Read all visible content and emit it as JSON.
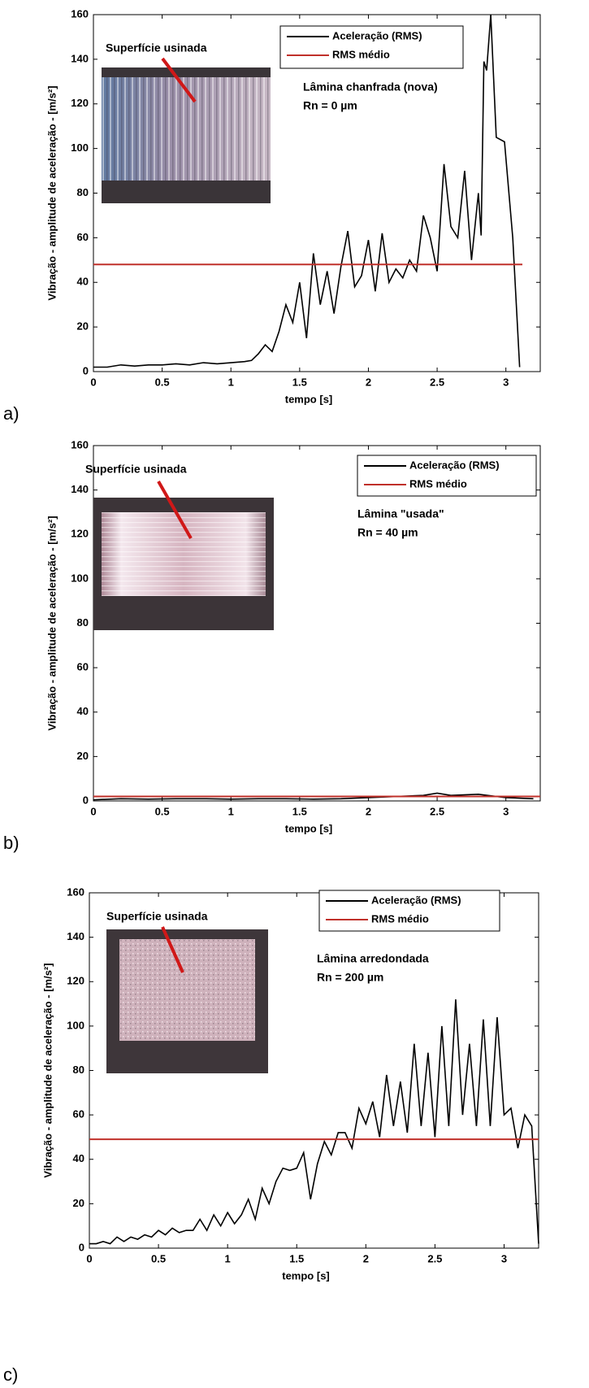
{
  "chart_data": [
    {
      "type": "line",
      "panel_label": "a)",
      "x_label": "tempo [s]",
      "y_label": "Vibração - amplitude de aceleração - [m/s²]",
      "inset_label": "Superfície usinada",
      "annotations": [
        "Lâmina chanfrada (nova)",
        "Rn = 0 µm"
      ],
      "xlim": [
        0,
        3.25
      ],
      "ylim": [
        0,
        160
      ],
      "xticks": [
        0,
        0.5,
        1,
        1.5,
        2,
        2.5,
        3
      ],
      "yticks": [
        0,
        20,
        40,
        60,
        80,
        100,
        120,
        140,
        160
      ],
      "series": [
        {
          "name": "Aceleração (RMS)",
          "color": "#000000",
          "x": [
            0,
            0.1,
            0.2,
            0.3,
            0.4,
            0.5,
            0.6,
            0.7,
            0.8,
            0.9,
            1.0,
            1.1,
            1.15,
            1.2,
            1.25,
            1.3,
            1.35,
            1.4,
            1.45,
            1.5,
            1.55,
            1.6,
            1.65,
            1.7,
            1.75,
            1.8,
            1.85,
            1.9,
            1.95,
            2.0,
            2.05,
            2.1,
            2.15,
            2.2,
            2.25,
            2.3,
            2.35,
            2.4,
            2.45,
            2.5,
            2.55,
            2.6,
            2.65,
            2.7,
            2.75,
            2.8,
            2.82,
            2.84,
            2.86,
            2.89,
            2.93,
            2.99,
            3.05,
            3.1
          ],
          "values": [
            2,
            2,
            3,
            2.5,
            3,
            3,
            3.5,
            3,
            4,
            3.5,
            4,
            4.5,
            5,
            8,
            12,
            9,
            18,
            30,
            22,
            40,
            15,
            53,
            30,
            45,
            26,
            47,
            63,
            38,
            43,
            59,
            36,
            62,
            40,
            46,
            42,
            50,
            45,
            70,
            60,
            45,
            93,
            65,
            60,
            90,
            50,
            80,
            61,
            139,
            135,
            160,
            105,
            103,
            60,
            2
          ]
        },
        {
          "name": "RMS médio",
          "color": "#c0302a",
          "x": [
            0,
            3.12
          ],
          "values": [
            48,
            48
          ]
        }
      ]
    },
    {
      "type": "line",
      "panel_label": "b)",
      "x_label": "tempo [s]",
      "y_label": "Vibração - amplitude de aceleração - [m/s²]",
      "inset_label": "Superfície usinada",
      "annotations": [
        "Lâmina \"usada\"",
        "Rn = 40 µm"
      ],
      "xlim": [
        0,
        3.25
      ],
      "ylim": [
        0,
        160
      ],
      "xticks": [
        0,
        0.5,
        1,
        1.5,
        2,
        2.5,
        3
      ],
      "yticks": [
        0,
        20,
        40,
        60,
        80,
        100,
        120,
        140,
        160
      ],
      "series": [
        {
          "name": "Aceleração (RMS)",
          "color": "#000000",
          "x": [
            0,
            0.2,
            0.4,
            0.6,
            0.8,
            1.0,
            1.2,
            1.4,
            1.6,
            1.8,
            2.0,
            2.2,
            2.4,
            2.5,
            2.6,
            2.8,
            3.0,
            3.2
          ],
          "values": [
            0.5,
            1,
            0.8,
            1,
            1,
            0.8,
            1,
            1,
            0.8,
            1,
            1.5,
            2,
            2.5,
            3.5,
            2.5,
            3,
            1.5,
            1
          ]
        },
        {
          "name": "RMS médio",
          "color": "#c0302a",
          "x": [
            0,
            3.25
          ],
          "values": [
            2,
            2
          ]
        }
      ]
    },
    {
      "type": "line",
      "panel_label": "c)",
      "x_label": "tempo [s]",
      "y_label": "Vibração - amplitude de aceleração - [m/s²]",
      "inset_label": "Superfície usinada",
      "annotations": [
        "Lâmina arredondada",
        "Rn = 200 µm"
      ],
      "xlim": [
        0,
        3.25
      ],
      "ylim": [
        0,
        160
      ],
      "xticks": [
        0,
        0.5,
        1,
        1.5,
        2,
        2.5,
        3
      ],
      "yticks": [
        0,
        20,
        40,
        60,
        80,
        100,
        120,
        140,
        160
      ],
      "series": [
        {
          "name": "Aceleração (RMS)",
          "color": "#000000",
          "x": [
            0,
            0.05,
            0.1,
            0.15,
            0.2,
            0.25,
            0.3,
            0.35,
            0.4,
            0.45,
            0.5,
            0.55,
            0.6,
            0.65,
            0.7,
            0.75,
            0.8,
            0.85,
            0.9,
            0.95,
            1.0,
            1.05,
            1.1,
            1.15,
            1.2,
            1.25,
            1.3,
            1.35,
            1.4,
            1.45,
            1.5,
            1.55,
            1.6,
            1.65,
            1.7,
            1.75,
            1.8,
            1.85,
            1.9,
            1.95,
            2.0,
            2.05,
            2.1,
            2.15,
            2.2,
            2.25,
            2.3,
            2.35,
            2.4,
            2.45,
            2.5,
            2.55,
            2.6,
            2.65,
            2.7,
            2.75,
            2.8,
            2.85,
            2.9,
            2.95,
            3.0,
            3.05,
            3.1,
            3.15,
            3.2,
            3.25
          ],
          "values": [
            2,
            2,
            3,
            2,
            5,
            3,
            5,
            4,
            6,
            5,
            8,
            6,
            9,
            7,
            8,
            8,
            13,
            8,
            15,
            10,
            16,
            11,
            15,
            22,
            13,
            27,
            20,
            30,
            36,
            35,
            36,
            43,
            22,
            38,
            48,
            42,
            52,
            52,
            45,
            63,
            56,
            66,
            50,
            78,
            55,
            75,
            52,
            92,
            55,
            88,
            50,
            100,
            55,
            112,
            60,
            92,
            55,
            103,
            55,
            104,
            60,
            63,
            45,
            60,
            55,
            2
          ]
        },
        {
          "name": "RMS médio",
          "color": "#c0302a",
          "x": [
            0,
            3.25
          ],
          "values": [
            49,
            49
          ]
        }
      ]
    }
  ]
}
